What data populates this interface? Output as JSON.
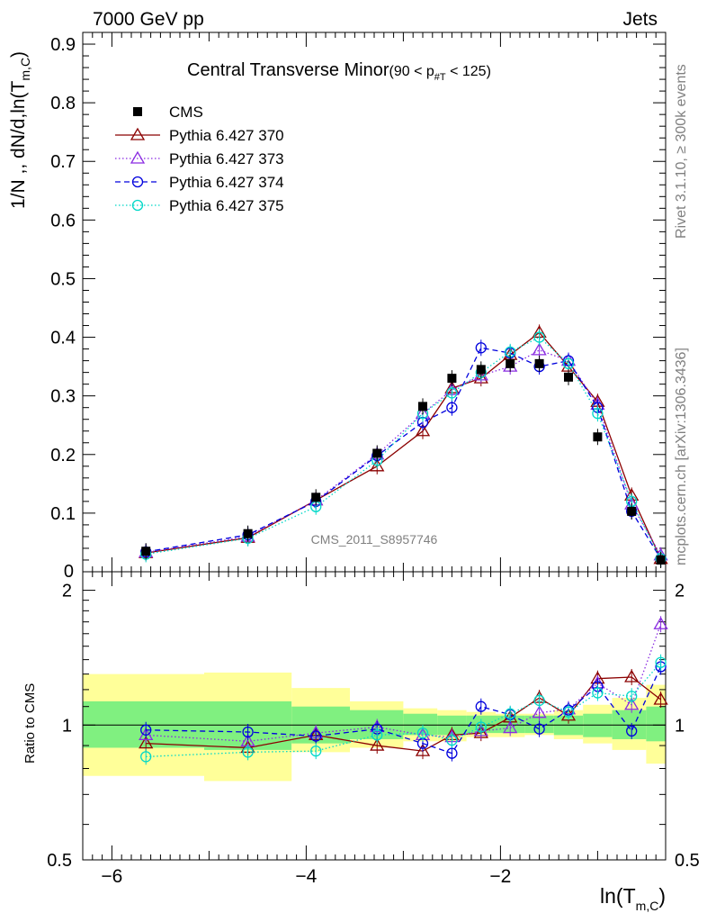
{
  "header": {
    "left": "7000 GeV pp",
    "right": "Jets"
  },
  "side": {
    "rivet": "Rivet 3.1.10, ≥ 300k events",
    "mcplots": "mcplots.cern.ch [arXiv:1306.3436]"
  },
  "colors": {
    "cms": "#000000",
    "p370": "#8b0000",
    "p373": "#8a2be2",
    "p374": "#0000dd",
    "p375": "#00d8c8",
    "band_inner": "#80f080",
    "band_outer": "#ffff99"
  },
  "chart_data": [
    {
      "type": "scatter",
      "panel": "main",
      "title": "Central Transverse Minor",
      "title_suffix": "(90 < p",
      "title_sub": "#T",
      "title_end": " < 125)",
      "ylabel": "1/N ,, dN/d,ln(T",
      "ylabel_sub": "m,C",
      "ylabel_end": ")",
      "watermark": "CMS_2011_S8957746",
      "xlim": [
        -6.3,
        -0.3
      ],
      "ylim": [
        0,
        0.92
      ],
      "yticks": [
        0.1,
        0.2,
        0.3,
        0.4,
        0.5,
        0.6,
        0.7,
        0.8,
        0.9
      ],
      "ytick_labels": [
        "0.1",
        "0.2",
        "0.3",
        "0.4",
        "0.5",
        "0.6",
        "0.7",
        "0.8",
        "0.9"
      ],
      "legend_position": "top-left",
      "x": [
        -5.65,
        -4.6,
        -3.9,
        -3.27,
        -2.8,
        -2.5,
        -2.2,
        -1.9,
        -1.6,
        -1.3,
        -1.0,
        -0.65,
        -0.35
      ],
      "series": [
        {
          "name": "CMS",
          "key": "cms",
          "marker": "square",
          "dash": "",
          "values": [
            0.035,
            0.065,
            0.127,
            0.202,
            0.282,
            0.33,
            0.345,
            0.355,
            0.355,
            0.332,
            0.23,
            0.103,
            0.02
          ]
        },
        {
          "name": "Pythia 6.427 370",
          "key": "p370",
          "marker": "triangle",
          "dash": "",
          "values": [
            0.032,
            0.058,
            0.122,
            0.18,
            0.24,
            0.313,
            0.33,
            0.37,
            0.408,
            0.35,
            0.29,
            0.13,
            0.022
          ]
        },
        {
          "name": "Pythia 6.427 373",
          "key": "p373",
          "marker": "triangle",
          "dash": "1.5,2.5",
          "values": [
            0.033,
            0.06,
            0.122,
            0.2,
            0.27,
            0.31,
            0.335,
            0.35,
            0.378,
            0.36,
            0.285,
            0.115,
            0.028
          ]
        },
        {
          "name": "Pythia 6.427 374",
          "key": "p374",
          "marker": "circle",
          "dash": "6,4",
          "values": [
            0.034,
            0.063,
            0.12,
            0.198,
            0.255,
            0.28,
            0.382,
            0.373,
            0.35,
            0.36,
            0.28,
            0.103,
            0.022
          ]
        },
        {
          "name": "Pythia 6.427 375",
          "key": "p375",
          "marker": "circle",
          "dash": "1.5,2.5",
          "values": [
            0.03,
            0.057,
            0.111,
            0.19,
            0.27,
            0.305,
            0.34,
            0.375,
            0.4,
            0.355,
            0.27,
            0.12,
            0.022
          ]
        }
      ]
    },
    {
      "type": "scatter",
      "panel": "ratio",
      "ylabel": "Ratio to CMS",
      "xlabel": "ln(T",
      "xlabel_sub": "m,C",
      "xlabel_end": ")",
      "xlim": [
        -6.3,
        -0.3
      ],
      "ylim": [
        0.5,
        2.2
      ],
      "log_y": true,
      "yticks": [
        0.5,
        1,
        2
      ],
      "ytick_labels": [
        "0.5",
        "1",
        "2"
      ],
      "xticks": [
        -6,
        -4,
        -2
      ],
      "xtick_labels": [
        "−6",
        "−4",
        "−2"
      ],
      "reference_line": 1,
      "bands": {
        "edges": [
          -6.3,
          -5.05,
          -4.15,
          -3.55,
          -3.0,
          -2.65,
          -2.35,
          -2.05,
          -1.75,
          -1.45,
          -1.15,
          -0.85,
          -0.5,
          -0.3
        ],
        "inner_lo": [
          0.89,
          0.88,
          0.91,
          0.93,
          0.95,
          0.95,
          0.96,
          0.96,
          0.96,
          0.95,
          0.94,
          0.93,
          0.92
        ],
        "inner_hi": [
          1.13,
          1.13,
          1.1,
          1.08,
          1.06,
          1.05,
          1.05,
          1.05,
          1.05,
          1.05,
          1.06,
          1.08,
          1.1
        ],
        "outer_lo": [
          0.77,
          0.75,
          0.87,
          0.89,
          0.92,
          0.92,
          0.94,
          0.94,
          0.95,
          0.93,
          0.91,
          0.88,
          0.82
        ],
        "outer_hi": [
          1.3,
          1.31,
          1.21,
          1.13,
          1.09,
          1.08,
          1.07,
          1.06,
          1.06,
          1.08,
          1.11,
          1.15,
          1.23
        ]
      },
      "x": [
        -5.65,
        -4.6,
        -3.9,
        -3.27,
        -2.8,
        -2.5,
        -2.2,
        -1.9,
        -1.6,
        -1.3,
        -1.0,
        -0.65,
        -0.35
      ],
      "series": [
        {
          "name": "Pythia 6.427 370",
          "key": "p370",
          "marker": "triangle",
          "dash": "",
          "values": [
            0.91,
            0.89,
            0.95,
            0.9,
            0.875,
            0.95,
            0.96,
            1.04,
            1.15,
            1.05,
            1.27,
            1.28,
            1.14
          ]
        },
        {
          "name": "Pythia 6.427 373",
          "key": "p373",
          "marker": "triangle",
          "dash": "1.5,2.5",
          "values": [
            0.95,
            0.92,
            0.96,
            0.99,
            0.95,
            0.94,
            0.97,
            0.985,
            1.065,
            1.085,
            1.24,
            1.11,
            1.68
          ]
        },
        {
          "name": "Pythia 6.427 374",
          "key": "p374",
          "marker": "circle",
          "dash": "6,4",
          "values": [
            0.975,
            0.965,
            0.945,
            0.98,
            0.91,
            0.865,
            1.1,
            1.055,
            0.98,
            1.08,
            1.22,
            0.97,
            1.35
          ]
        },
        {
          "name": "Pythia 6.427 375",
          "key": "p375",
          "marker": "circle",
          "dash": "1.5,2.5",
          "values": [
            0.85,
            0.87,
            0.875,
            0.95,
            0.96,
            0.925,
            0.99,
            1.06,
            1.135,
            1.07,
            1.18,
            1.16,
            1.38
          ]
        }
      ]
    }
  ]
}
